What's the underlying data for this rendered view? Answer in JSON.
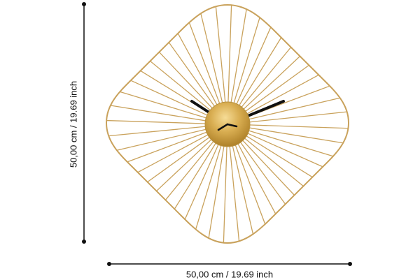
{
  "product": {
    "name": "wall-clock-wire-frame",
    "colors": {
      "frame": "#c9a25c",
      "spokes": "#c9a25c",
      "hub": "#c99a3a",
      "hub_highlight": "#f3d58a",
      "hands": "#111111",
      "dimension_lines": "#111111"
    },
    "icons": [
      "wire-spoke-clock",
      "clock-hand",
      "dimension-arrow"
    ]
  },
  "dimensions": {
    "height_label": "50,00 cm / 19.69 inch",
    "width_label": "50,00 cm / 19.69 inch"
  }
}
